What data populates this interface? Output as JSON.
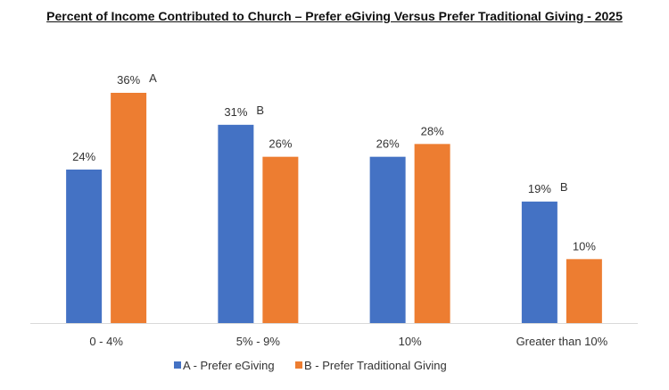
{
  "chart_data": {
    "type": "bar",
    "title": "Percent of Income Contributed to Church – Prefer eGiving Versus Prefer Traditional Giving - 2025",
    "categories": [
      "0 - 4%",
      "5% - 9%",
      "10%",
      "Greater than 10%"
    ],
    "series": [
      {
        "name": "A - Prefer eGiving",
        "color": "#4472C4",
        "values": [
          24,
          31,
          26,
          19
        ],
        "labels": [
          "24%",
          "31%",
          "26%",
          "19%"
        ],
        "sig_marks": [
          "",
          "B",
          "",
          "B"
        ]
      },
      {
        "name": "B - Prefer Traditional Giving",
        "color": "#ED7D31",
        "values": [
          36,
          26,
          28,
          10
        ],
        "labels": [
          "36%",
          "26%",
          "28%",
          "10%"
        ],
        "sig_marks": [
          "A",
          "",
          "",
          ""
        ]
      }
    ],
    "ylim": [
      0,
      36
    ],
    "grid": false,
    "legend": "bottom-center"
  }
}
